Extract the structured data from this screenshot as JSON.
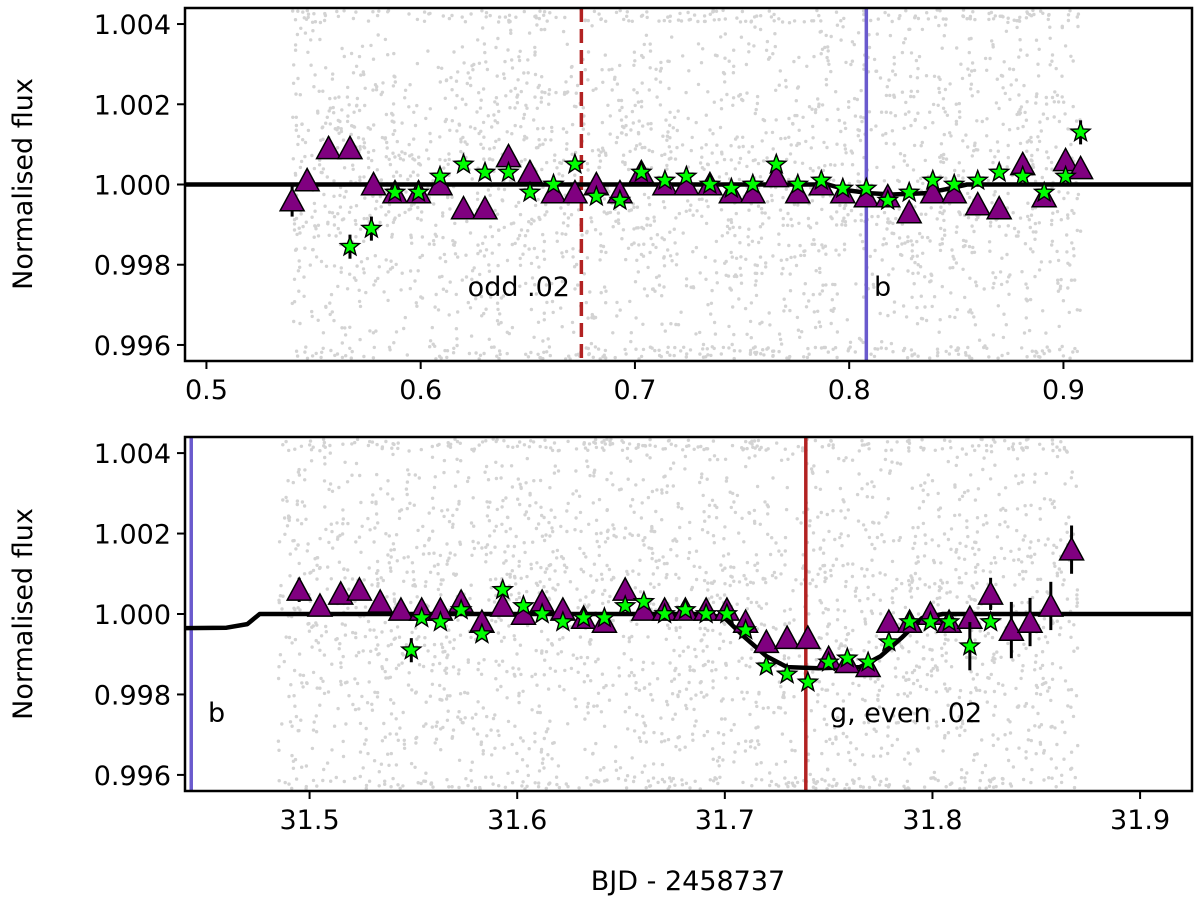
{
  "chart_data": [
    {
      "type": "scatter",
      "panel": "top",
      "xlim": [
        0.49,
        0.96
      ],
      "ylim": [
        0.9956,
        1.0044
      ],
      "xticks": [
        0.5,
        0.6,
        0.7,
        0.8,
        0.9
      ],
      "xtick_labels": [
        "0.5",
        "0.6",
        "0.7",
        "0.8",
        "0.9"
      ],
      "yticks": [
        0.996,
        0.998,
        1.0,
        1.002,
        1.004
      ],
      "ytick_labels": [
        "0.996",
        "0.998",
        "1.000",
        "1.002",
        "1.004"
      ],
      "ylabel": "Normalised flux",
      "xlabel": "",
      "raw_range": [
        0.54,
        0.908
      ],
      "colors": {
        "raw": "#d3d3d3",
        "triangle": "#800080",
        "star": "#00ff00",
        "model": "#000000",
        "odd_line": "#b22222",
        "b_line": "#6a5acd"
      },
      "vlines": [
        {
          "x": 0.675,
          "style": "dashed",
          "color": "#b22222",
          "label": "odd .02",
          "label_pos": "left"
        },
        {
          "x": 0.808,
          "style": "solid",
          "color": "#6a5acd",
          "label": "b",
          "label_pos": "right"
        }
      ],
      "model": [
        [
          0.49,
          1.0
        ],
        [
          0.79,
          1.0
        ],
        [
          0.8,
          0.99985
        ],
        [
          0.81,
          0.99978
        ],
        [
          0.82,
          0.99975
        ],
        [
          0.835,
          0.99978
        ],
        [
          0.845,
          0.99988
        ],
        [
          0.855,
          1.0
        ],
        [
          0.96,
          1.0
        ]
      ],
      "triangles": [
        [
          0.54,
          0.9996,
          0.0004
        ],
        [
          0.547,
          1.0001,
          0.0002
        ],
        [
          0.557,
          1.0009,
          0
        ],
        [
          0.567,
          1.0009,
          0
        ],
        [
          0.578,
          1.0,
          0
        ],
        [
          0.588,
          0.9998,
          0
        ],
        [
          0.599,
          0.9998,
          0
        ],
        [
          0.609,
          1.0,
          0
        ],
        [
          0.62,
          0.9994,
          0
        ],
        [
          0.63,
          0.9994,
          0
        ],
        [
          0.641,
          1.0007,
          0
        ],
        [
          0.651,
          1.0003,
          0
        ],
        [
          0.662,
          0.9998,
          0
        ],
        [
          0.672,
          0.9998,
          0
        ],
        [
          0.682,
          1.0,
          0
        ],
        [
          0.693,
          0.9998,
          0
        ],
        [
          0.703,
          1.0003,
          0
        ],
        [
          0.714,
          1.0,
          0
        ],
        [
          0.724,
          1.0,
          0
        ],
        [
          0.735,
          1.0,
          0
        ],
        [
          0.745,
          0.9998,
          0
        ],
        [
          0.755,
          0.9998,
          0
        ],
        [
          0.766,
          1.0002,
          0
        ],
        [
          0.776,
          0.9998,
          0
        ],
        [
          0.787,
          1.0,
          0
        ],
        [
          0.797,
          0.9998,
          0
        ],
        [
          0.808,
          0.9997,
          0
        ],
        [
          0.818,
          0.9997,
          0
        ],
        [
          0.828,
          0.9993,
          0
        ],
        [
          0.839,
          0.9998,
          0
        ],
        [
          0.849,
          0.9998,
          0
        ],
        [
          0.86,
          0.9995,
          0
        ],
        [
          0.87,
          0.9994,
          0
        ],
        [
          0.881,
          1.0005,
          0
        ],
        [
          0.891,
          0.9997,
          0
        ],
        [
          0.901,
          1.0006,
          0
        ],
        [
          0.908,
          1.0004,
          0
        ]
      ],
      "stars": [
        [
          0.567,
          0.99845,
          0.0003
        ],
        [
          0.577,
          0.9989,
          0.0003
        ],
        [
          0.588,
          0.9998,
          0
        ],
        [
          0.599,
          0.9998,
          0.0001
        ],
        [
          0.609,
          1.0002,
          0
        ],
        [
          0.62,
          1.0005,
          0
        ],
        [
          0.63,
          1.0003,
          0
        ],
        [
          0.641,
          1.0003,
          0
        ],
        [
          0.651,
          0.9998,
          0
        ],
        [
          0.662,
          1.0,
          0
        ],
        [
          0.672,
          1.0005,
          0
        ],
        [
          0.682,
          0.9997,
          0
        ],
        [
          0.693,
          0.9996,
          0
        ],
        [
          0.703,
          1.0003,
          0
        ],
        [
          0.714,
          1.0001,
          0
        ],
        [
          0.724,
          1.0002,
          0
        ],
        [
          0.735,
          1.0,
          0
        ],
        [
          0.745,
          0.9999,
          0
        ],
        [
          0.755,
          1.0,
          0
        ],
        [
          0.766,
          1.0005,
          0
        ],
        [
          0.776,
          1.0,
          0
        ],
        [
          0.787,
          1.0001,
          0
        ],
        [
          0.797,
          0.9999,
          0
        ],
        [
          0.808,
          0.9999,
          0
        ],
        [
          0.818,
          0.9996,
          0
        ],
        [
          0.828,
          0.9998,
          0
        ],
        [
          0.839,
          1.0001,
          0
        ],
        [
          0.849,
          1.0,
          0
        ],
        [
          0.86,
          1.0001,
          0
        ],
        [
          0.87,
          1.0003,
          0
        ],
        [
          0.881,
          1.0002,
          0
        ],
        [
          0.891,
          0.9998,
          0
        ],
        [
          0.901,
          1.0002,
          0
        ],
        [
          0.908,
          1.0013,
          0.0003
        ]
      ]
    },
    {
      "type": "scatter",
      "panel": "bottom",
      "xlim": [
        31.44,
        31.925
      ],
      "ylim": [
        0.9956,
        1.0044
      ],
      "xticks": [
        31.5,
        31.6,
        31.7,
        31.8,
        31.9
      ],
      "xtick_labels": [
        "31.5",
        "31.6",
        "31.7",
        "31.8",
        "31.9"
      ],
      "yticks": [
        0.996,
        0.998,
        1.0,
        1.002,
        1.004
      ],
      "ytick_labels": [
        "0.996",
        "0.998",
        "1.000",
        "1.002",
        "1.004"
      ],
      "ylabel": "Normalised flux",
      "xlabel": "BJD - 2458737",
      "raw_range": [
        31.485,
        31.87
      ],
      "colors": {
        "raw": "#d3d3d3",
        "triangle": "#800080",
        "star": "#00ff00",
        "model": "#000000",
        "g_line": "#b22222",
        "b_line": "#6a5acd"
      },
      "vlines": [
        {
          "x": 31.443,
          "style": "solid",
          "color": "#6a5acd",
          "label": "b",
          "label_pos": "right"
        },
        {
          "x": 31.739,
          "style": "solid",
          "color": "#b22222",
          "label": "g, even .02",
          "label_pos": "right"
        }
      ],
      "model": [
        [
          31.44,
          0.99965
        ],
        [
          31.46,
          0.99966
        ],
        [
          31.47,
          0.99975
        ],
        [
          31.476,
          1.0
        ],
        [
          31.69,
          1.0
        ],
        [
          31.7,
          0.9999
        ],
        [
          31.71,
          0.9994
        ],
        [
          31.72,
          0.99895
        ],
        [
          31.73,
          0.99868
        ],
        [
          31.745,
          0.99865
        ],
        [
          31.765,
          0.99868
        ],
        [
          31.775,
          0.99895
        ],
        [
          31.785,
          0.9994
        ],
        [
          31.795,
          0.9999
        ],
        [
          31.805,
          1.0
        ],
        [
          31.925,
          1.0
        ]
      ],
      "triangles": [
        [
          31.495,
          1.0006,
          0.0003
        ],
        [
          31.505,
          1.0002,
          0
        ],
        [
          31.515,
          1.0005,
          0
        ],
        [
          31.524,
          1.0006,
          0
        ],
        [
          31.534,
          1.0003,
          0
        ],
        [
          31.544,
          1.0001,
          0
        ],
        [
          31.554,
          1.0001,
          0
        ],
        [
          31.563,
          1.0001,
          0
        ],
        [
          31.573,
          1.0003,
          0
        ],
        [
          31.583,
          0.9998,
          0
        ],
        [
          31.593,
          1.0002,
          0
        ],
        [
          31.603,
          1.0,
          0
        ],
        [
          31.612,
          1.0003,
          0
        ],
        [
          31.622,
          1.0001,
          0
        ],
        [
          31.632,
          0.9999,
          0
        ],
        [
          31.642,
          0.9998,
          0
        ],
        [
          31.652,
          1.0006,
          0
        ],
        [
          31.661,
          1.0001,
          0
        ],
        [
          31.671,
          1.0001,
          0
        ],
        [
          31.681,
          1.0001,
          0
        ],
        [
          31.691,
          1.0001,
          0
        ],
        [
          31.701,
          1.0001,
          0
        ],
        [
          31.71,
          0.9998,
          0
        ],
        [
          31.72,
          0.9993,
          0
        ],
        [
          31.73,
          0.9994,
          0
        ],
        [
          31.74,
          0.9994,
          0
        ],
        [
          31.75,
          0.9989,
          0
        ],
        [
          31.759,
          0.9988,
          0
        ],
        [
          31.769,
          0.9987,
          0
        ],
        [
          31.779,
          0.9998,
          0
        ],
        [
          31.789,
          0.9998,
          0
        ],
        [
          31.799,
          1.0,
          0
        ],
        [
          31.808,
          0.9998,
          0
        ],
        [
          31.818,
          0.9999,
          0
        ],
        [
          31.828,
          1.0005,
          0.0004
        ],
        [
          31.838,
          0.9996,
          0.0007
        ],
        [
          31.847,
          0.9998,
          0.0006
        ],
        [
          31.857,
          1.0002,
          0.0006
        ],
        [
          31.867,
          1.0016,
          0.0006
        ]
      ],
      "stars": [
        [
          31.549,
          0.9991,
          0.0003
        ],
        [
          31.554,
          0.9999,
          0
        ],
        [
          31.563,
          0.9998,
          0
        ],
        [
          31.573,
          1.0001,
          0
        ],
        [
          31.583,
          0.9995,
          0
        ],
        [
          31.593,
          1.0006,
          0
        ],
        [
          31.603,
          1.0002,
          0
        ],
        [
          31.612,
          1.0,
          0
        ],
        [
          31.622,
          0.9998,
          0
        ],
        [
          31.632,
          0.9999,
          0
        ],
        [
          31.642,
          0.9999,
          0
        ],
        [
          31.652,
          1.0002,
          0
        ],
        [
          31.661,
          1.0003,
          0
        ],
        [
          31.671,
          1.0,
          0
        ],
        [
          31.681,
          1.0001,
          0
        ],
        [
          31.691,
          1.0,
          0
        ],
        [
          31.701,
          1.0,
          0
        ],
        [
          31.71,
          0.9996,
          0
        ],
        [
          31.72,
          0.9987,
          0
        ],
        [
          31.73,
          0.9985,
          0
        ],
        [
          31.74,
          0.9983,
          0
        ],
        [
          31.75,
          0.9988,
          0
        ],
        [
          31.759,
          0.9989,
          0
        ],
        [
          31.769,
          0.9988,
          0
        ],
        [
          31.779,
          0.9993,
          0
        ],
        [
          31.789,
          0.9998,
          0
        ],
        [
          31.799,
          0.9998,
          0
        ],
        [
          31.808,
          0.9998,
          0
        ],
        [
          31.818,
          0.9992,
          0.0006
        ],
        [
          31.828,
          0.9998,
          0
        ]
      ]
    }
  ]
}
